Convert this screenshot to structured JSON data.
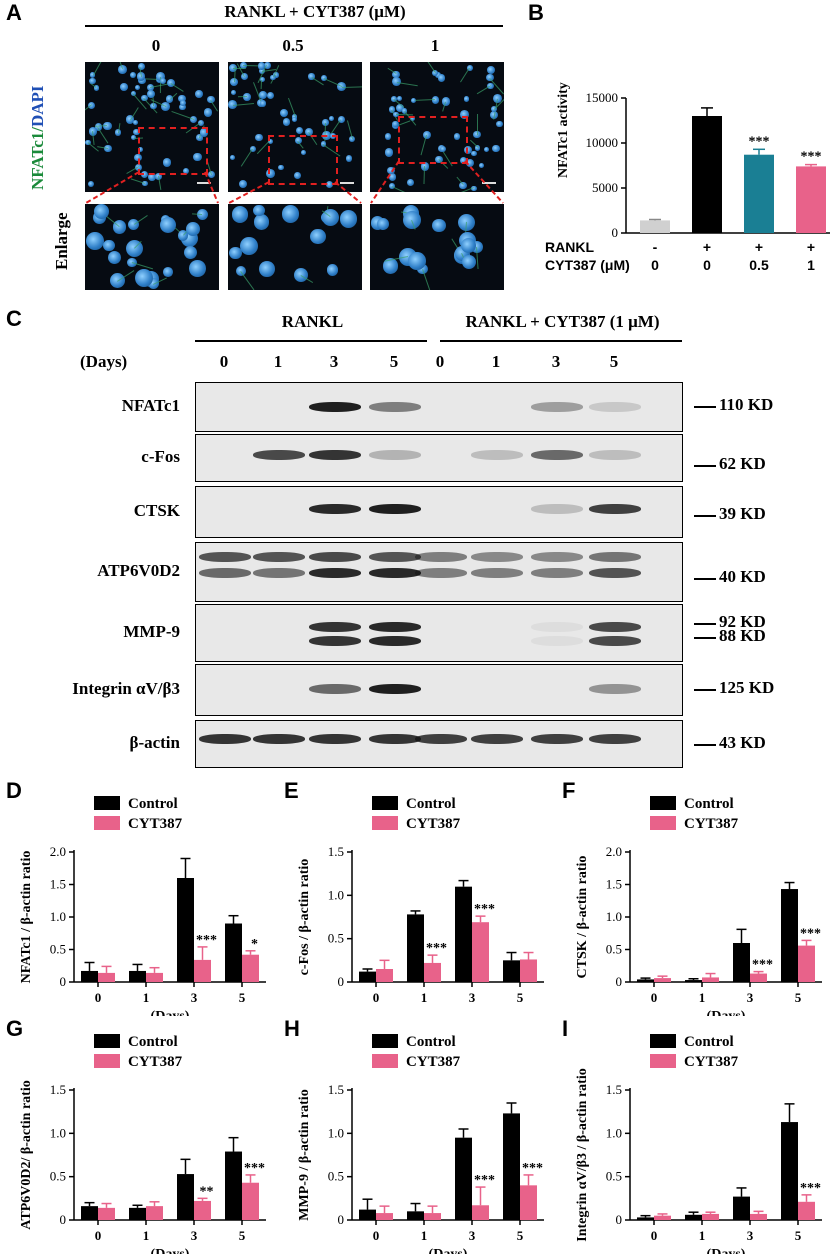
{
  "panels": [
    "A",
    "B",
    "C",
    "D",
    "E",
    "F",
    "G",
    "H",
    "I"
  ],
  "panelA": {
    "header": "RANKL + CYT387 (μM)",
    "doses": [
      "0",
      "0.5",
      "1"
    ],
    "row_label_green": "NFATc1/",
    "row_label_blue": "DAPI",
    "row2_label": "Enlarge",
    "colors": {
      "green": "#1a8a3a",
      "blue": "#1f4fb5",
      "box": "#e02020"
    }
  },
  "panelB": {
    "ylabel": "NFATc1 activity",
    "row_labels": [
      "RANKL",
      "CYT387 (μM)"
    ],
    "rankl": [
      "-",
      "+",
      "+",
      "+"
    ],
    "cyt": [
      "0",
      "0",
      "0.5",
      "1"
    ],
    "chart_data": {
      "type": "bar",
      "ylabel": "NFATc1 activity",
      "yticks": [
        "0",
        "5000",
        "10000",
        "15000"
      ],
      "ylim": [
        0,
        15000
      ],
      "values": [
        1400,
        13000,
        8700,
        7400
      ],
      "errors": [
        100,
        900,
        600,
        200
      ],
      "significance": [
        "",
        "",
        "***",
        "***"
      ],
      "colors": [
        "#d0d0d0",
        "#000000",
        "#1a7f94",
        "#e8628a"
      ]
    }
  },
  "panelC": {
    "group1": "RANKL",
    "group2": "RANKL + CYT387 (1 μM)",
    "days_label": "(Days)",
    "days": [
      "0",
      "1",
      "3",
      "5",
      "0",
      "1",
      "3",
      "5"
    ],
    "proteins": [
      {
        "name": "NFATc1",
        "kd": [
          "110 KD"
        ]
      },
      {
        "name": "c-Fos",
        "kd": [
          "62 KD"
        ]
      },
      {
        "name": "CTSK",
        "kd": [
          "39 KD"
        ]
      },
      {
        "name": "ATP6V0D2",
        "kd": [
          "40 KD"
        ]
      },
      {
        "name": "MMP-9",
        "kd": [
          "92 KD",
          "88 KD"
        ]
      },
      {
        "name": "Integrin αV/β3",
        "kd": [
          "125 KD"
        ]
      },
      {
        "name": "β-actin",
        "kd": [
          "43 KD"
        ]
      }
    ]
  },
  "legend": {
    "control": "Control",
    "cyt": "CYT387",
    "control_color": "#000000",
    "cyt_color": "#e8628a"
  },
  "chart_data": [
    {
      "type": "bar",
      "panel": "D",
      "ylabel": "NFATc1 / β-actin ratio",
      "xlabel": "(Days)",
      "categories": [
        "0",
        "1",
        "3",
        "5"
      ],
      "yticks": [
        "0",
        "0.5",
        "1.0",
        "1.5",
        "2.0"
      ],
      "ylim": [
        0,
        2.0
      ],
      "series": [
        {
          "name": "Control",
          "values": [
            0.17,
            0.17,
            1.6,
            0.9
          ],
          "errors": [
            0.13,
            0.1,
            0.3,
            0.12
          ]
        },
        {
          "name": "CYT387",
          "values": [
            0.14,
            0.14,
            0.34,
            0.42
          ],
          "errors": [
            0.1,
            0.08,
            0.2,
            0.06
          ]
        }
      ],
      "significance": [
        "",
        "",
        "***",
        "*"
      ]
    },
    {
      "type": "bar",
      "panel": "E",
      "ylabel": "c-Fos / β-actin ratio",
      "xlabel": "",
      "categories": [
        "0",
        "1",
        "3",
        "5"
      ],
      "yticks": [
        "0",
        "0.5",
        "1.0",
        "1.5"
      ],
      "ylim": [
        0,
        1.5
      ],
      "series": [
        {
          "name": "Control",
          "values": [
            0.12,
            0.78,
            1.1,
            0.25
          ],
          "errors": [
            0.03,
            0.04,
            0.07,
            0.09
          ]
        },
        {
          "name": "CYT387",
          "values": [
            0.15,
            0.22,
            0.69,
            0.26
          ],
          "errors": [
            0.1,
            0.09,
            0.07,
            0.08
          ]
        }
      ],
      "significance": [
        "",
        "***",
        "***",
        ""
      ]
    },
    {
      "type": "bar",
      "panel": "F",
      "ylabel": "CTSK / β-actin ratio",
      "xlabel": "(Days)",
      "categories": [
        "0",
        "1",
        "3",
        "5"
      ],
      "yticks": [
        "0",
        "0.5",
        "1.0",
        "1.5",
        "2.0"
      ],
      "ylim": [
        0,
        2.0
      ],
      "series": [
        {
          "name": "Control",
          "values": [
            0.04,
            0.03,
            0.6,
            1.43
          ],
          "errors": [
            0.02,
            0.02,
            0.21,
            0.1
          ]
        },
        {
          "name": "CYT387",
          "values": [
            0.06,
            0.07,
            0.13,
            0.56
          ],
          "errors": [
            0.03,
            0.06,
            0.03,
            0.08
          ]
        }
      ],
      "significance": [
        "",
        "",
        "***",
        "***"
      ]
    },
    {
      "type": "bar",
      "panel": "G",
      "ylabel": "ATP6V0D2/ β-actin ratio",
      "xlabel": "(Days)",
      "categories": [
        "0",
        "1",
        "3",
        "5"
      ],
      "yticks": [
        "0",
        "0.5",
        "1.0",
        "1.5"
      ],
      "ylim": [
        0,
        1.5
      ],
      "series": [
        {
          "name": "Control",
          "values": [
            0.16,
            0.14,
            0.53,
            0.79
          ],
          "errors": [
            0.04,
            0.03,
            0.17,
            0.16
          ]
        },
        {
          "name": "CYT387",
          "values": [
            0.14,
            0.16,
            0.22,
            0.43
          ],
          "errors": [
            0.05,
            0.05,
            0.03,
            0.09
          ]
        }
      ],
      "significance": [
        "",
        "",
        "**",
        "***"
      ]
    },
    {
      "type": "bar",
      "panel": "H",
      "ylabel": "MMP-9 / β-actin ratio",
      "xlabel": "(Days)",
      "categories": [
        "0",
        "1",
        "3",
        "5"
      ],
      "yticks": [
        "0",
        "0.5",
        "1.0",
        "1.5"
      ],
      "ylim": [
        0,
        1.5
      ],
      "series": [
        {
          "name": "Control",
          "values": [
            0.12,
            0.1,
            0.95,
            1.23
          ],
          "errors": [
            0.12,
            0.09,
            0.1,
            0.12
          ]
        },
        {
          "name": "CYT387",
          "values": [
            0.08,
            0.08,
            0.17,
            0.4
          ],
          "errors": [
            0.08,
            0.08,
            0.21,
            0.12
          ]
        }
      ],
      "significance": [
        "",
        "",
        "***",
        "***"
      ]
    },
    {
      "type": "bar",
      "panel": "I",
      "ylabel": "Integrin αV/β3 / β-actin ratio",
      "xlabel": "(Days)",
      "categories": [
        "0",
        "1",
        "3",
        "5"
      ],
      "yticks": [
        "0",
        "0.5",
        "1.0",
        "1.5"
      ],
      "ylim": [
        0,
        1.5
      ],
      "series": [
        {
          "name": "Control",
          "values": [
            0.03,
            0.06,
            0.27,
            1.13
          ],
          "errors": [
            0.02,
            0.03,
            0.1,
            0.21
          ]
        },
        {
          "name": "CYT387",
          "values": [
            0.05,
            0.07,
            0.07,
            0.21
          ],
          "errors": [
            0.02,
            0.02,
            0.03,
            0.08
          ]
        }
      ],
      "significance": [
        "",
        "",
        "",
        "***"
      ]
    }
  ]
}
